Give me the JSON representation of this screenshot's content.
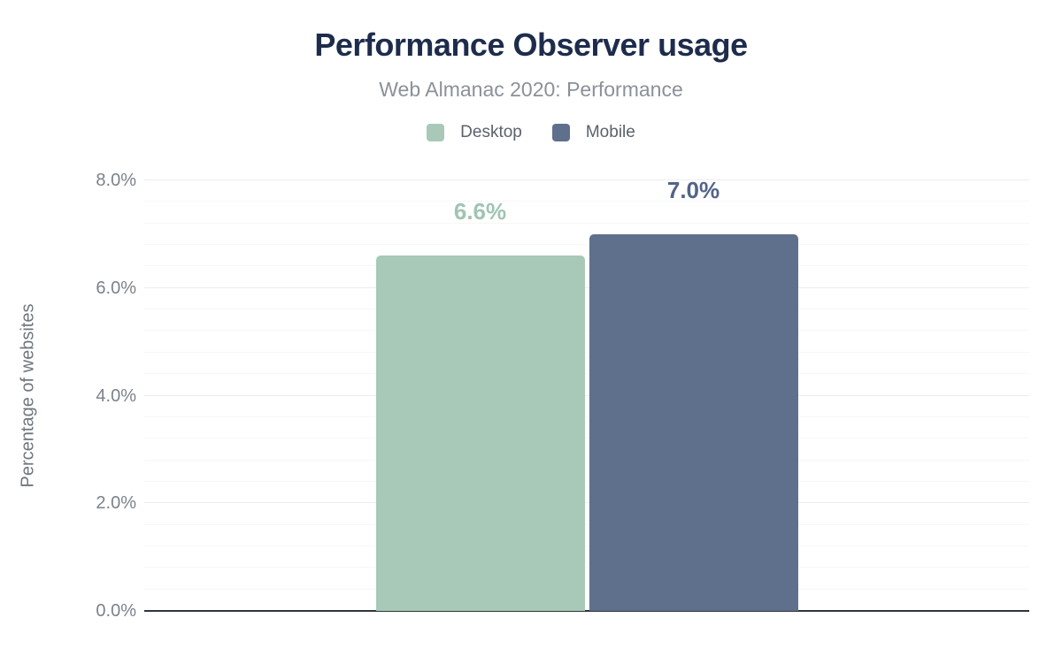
{
  "header": {
    "title": "Performance Observer usage",
    "subtitle": "Web Almanac 2020: Performance"
  },
  "chart_data": {
    "type": "bar",
    "title": "Performance Observer usage",
    "subtitle": "Web Almanac 2020: Performance",
    "xlabel": "",
    "ylabel": "Percentage of websites",
    "ylim": [
      0,
      8
    ],
    "y_major_step": 2,
    "y_minor_step": 0.4,
    "grid": "horizontal",
    "legend_position": "top",
    "yticks": [
      {
        "value": 0,
        "label": "0.0%"
      },
      {
        "value": 2,
        "label": "2.0%"
      },
      {
        "value": 4,
        "label": "4.0%"
      },
      {
        "value": 6,
        "label": "6.0%"
      },
      {
        "value": 8,
        "label": "8.0%"
      }
    ],
    "categories": [
      "Desktop",
      "Mobile"
    ],
    "series": [
      {
        "name": "Desktop",
        "value": 6.6,
        "display_value": "6.6%",
        "color": "#a8c9b8",
        "label_color": "#a0c4b3"
      },
      {
        "name": "Mobile",
        "value": 7.0,
        "display_value": "7.0%",
        "color": "#5f708d",
        "label_color": "#516489"
      }
    ],
    "colors": {
      "title": "#1e2c4c",
      "subtitle": "#8b9199",
      "axis_text": "#7b828a",
      "axis_line": "#30343a",
      "gridline_major": "#ececec",
      "gridline_minor": "#f7f7f7"
    }
  }
}
